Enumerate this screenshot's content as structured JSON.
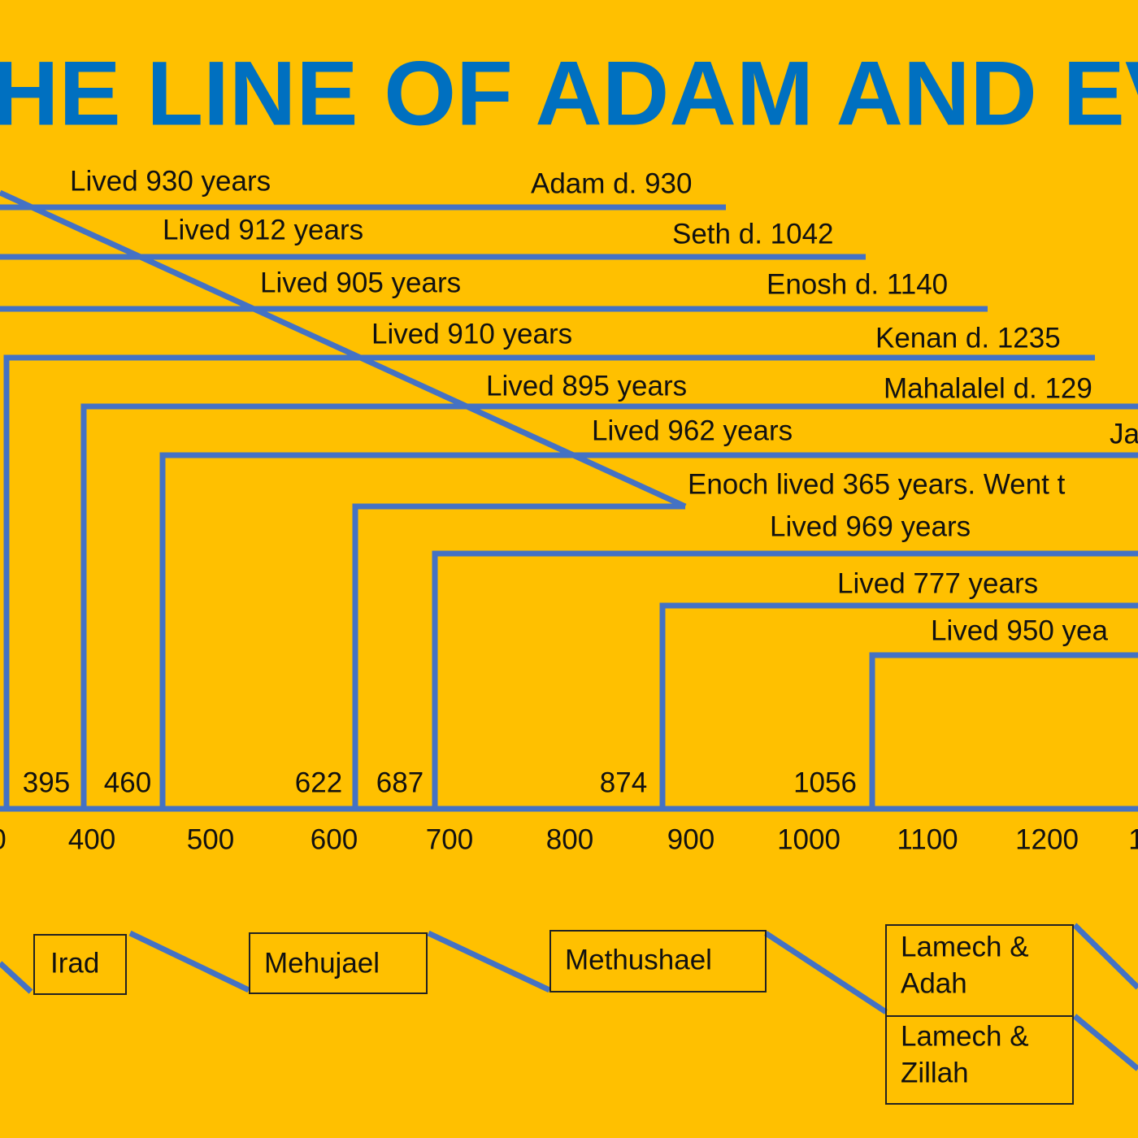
{
  "title": "HE LINE OF ADAM AND EV",
  "lifespans": [
    {
      "label": "Lived 930 years",
      "death": "Adam d. 930"
    },
    {
      "label": "Lived 912 years",
      "death": "Seth d. 1042"
    },
    {
      "label": "Lived 905 years",
      "death": "Enosh d. 1140"
    },
    {
      "label": "Lived 910 years",
      "death": "Kenan d. 1235"
    },
    {
      "label": "Lived 895 years",
      "death": "Mahalalel d. 129"
    },
    {
      "label": "Lived 962 years",
      "death": "Ja"
    },
    {
      "label": "Enoch lived 365 years. Went t"
    },
    {
      "label": "Lived 969 years"
    },
    {
      "label": "Lived 777 years"
    },
    {
      "label": "Lived 950 yea"
    }
  ],
  "birth_years": [
    395,
    460,
    622,
    687,
    874,
    1056
  ],
  "axis_labels": [
    "0",
    "400",
    "500",
    "600",
    "700",
    "800",
    "900",
    "1000",
    "1100",
    "1200",
    "1"
  ],
  "family_boxes": [
    {
      "lines": [
        "Irad"
      ]
    },
    {
      "lines": [
        "Mehujael"
      ]
    },
    {
      "lines": [
        "Methushael"
      ]
    },
    {
      "lines": [
        "Lamech &",
        "Adah"
      ]
    },
    {
      "lines": [
        "Lamech &",
        "Zillah"
      ]
    }
  ]
}
